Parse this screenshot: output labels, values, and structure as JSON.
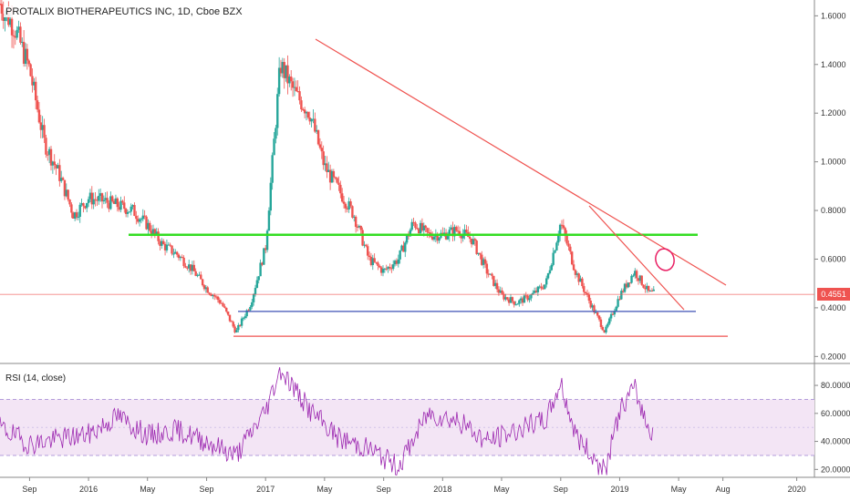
{
  "header": {
    "title": "PROTALIX BIOTHERAPEUTICS INC, 1D, Cboe BZX",
    "rsi_label": "RSI (14, close)"
  },
  "colors": {
    "up": "#26a69a",
    "down": "#ef5350",
    "trendline": "#ef5350",
    "resistance": "#33dd22",
    "support_blue": "#3f51b5",
    "support_red": "#ef5350",
    "rsi_line": "#9c27b0",
    "rsi_band": "#f3e5f5"
  },
  "chart_data": [
    {
      "type": "candlestick",
      "title": "PROTALIX BIOTHERAPEUTICS INC, 1D, Cboe BZX",
      "x_ticks": [
        "Sep",
        "2016",
        "May",
        "Sep",
        "2017",
        "May",
        "Sep",
        "2018",
        "May",
        "Sep",
        "2019",
        "May",
        "Aug",
        "2020"
      ],
      "y_ticks": [
        "1.6000",
        "1.4000",
        "1.2000",
        "1.0000",
        "0.8000",
        "0.6000",
        "0.4000",
        "0.2000"
      ],
      "ylim": [
        0.175,
        1.665
      ],
      "last_price": "0.4551",
      "series_close": [
        {
          "x": "2015-07",
          "y": 1.65
        },
        {
          "x": "2015-08",
          "y": 1.55
        },
        {
          "x": "2015-09",
          "y": 1.38
        },
        {
          "x": "2015-10",
          "y": 1.08
        },
        {
          "x": "2015-11",
          "y": 0.95
        },
        {
          "x": "2015-12",
          "y": 0.78
        },
        {
          "x": "2016-01",
          "y": 0.85
        },
        {
          "x": "2016-02",
          "y": 0.84
        },
        {
          "x": "2016-03",
          "y": 0.82
        },
        {
          "x": "2016-04",
          "y": 0.8
        },
        {
          "x": "2016-05",
          "y": 0.74
        },
        {
          "x": "2016-06",
          "y": 0.66
        },
        {
          "x": "2016-07",
          "y": 0.62
        },
        {
          "x": "2016-08",
          "y": 0.56
        },
        {
          "x": "2016-09",
          "y": 0.48
        },
        {
          "x": "2016-10",
          "y": 0.42
        },
        {
          "x": "2016-11",
          "y": 0.3
        },
        {
          "x": "2016-12",
          "y": 0.42
        },
        {
          "x": "2017-01",
          "y": 0.65
        },
        {
          "x": "2017-02",
          "y": 1.4
        },
        {
          "x": "2017-03",
          "y": 1.28
        },
        {
          "x": "2017-04",
          "y": 1.2
        },
        {
          "x": "2017-05",
          "y": 0.98
        },
        {
          "x": "2017-06",
          "y": 0.88
        },
        {
          "x": "2017-07",
          "y": 0.78
        },
        {
          "x": "2017-08",
          "y": 0.6
        },
        {
          "x": "2017-09",
          "y": 0.55
        },
        {
          "x": "2017-10",
          "y": 0.6
        },
        {
          "x": "2017-11",
          "y": 0.75
        },
        {
          "x": "2017-12",
          "y": 0.7
        },
        {
          "x": "2018-01",
          "y": 0.7
        },
        {
          "x": "2018-02",
          "y": 0.72
        },
        {
          "x": "2018-03",
          "y": 0.68
        },
        {
          "x": "2018-04",
          "y": 0.55
        },
        {
          "x": "2018-05",
          "y": 0.45
        },
        {
          "x": "2018-06",
          "y": 0.42
        },
        {
          "x": "2018-07",
          "y": 0.45
        },
        {
          "x": "2018-08",
          "y": 0.5
        },
        {
          "x": "2018-09",
          "y": 0.75
        },
        {
          "x": "2018-10",
          "y": 0.55
        },
        {
          "x": "2018-11",
          "y": 0.42
        },
        {
          "x": "2018-12",
          "y": 0.3
        },
        {
          "x": "2019-01",
          "y": 0.45
        },
        {
          "x": "2019-02",
          "y": 0.55
        },
        {
          "x": "2019-03",
          "y": 0.46
        }
      ],
      "horizontal_lines": [
        {
          "y": 0.7,
          "color": "#33dd22"
        },
        {
          "y": 0.385,
          "color": "#3f51b5"
        },
        {
          "y": 0.283,
          "color": "#ef5350"
        },
        {
          "y": 0.4551,
          "color": "#ef5350"
        }
      ]
    },
    {
      "type": "line",
      "title": "RSI (14, close)",
      "x_ticks": [
        "Sep",
        "2016",
        "May",
        "Sep",
        "2017",
        "May",
        "Sep",
        "2018",
        "May",
        "Sep",
        "2019",
        "May",
        "Aug",
        "2020"
      ],
      "y_ticks": [
        "80.0000",
        "60.0000",
        "40.0000",
        "20.0000"
      ],
      "ylim": [
        15,
        95
      ],
      "band": [
        30,
        70
      ],
      "series": [
        {
          "x": "2015-07",
          "y": 50
        },
        {
          "x": "2015-09",
          "y": 38
        },
        {
          "x": "2015-11",
          "y": 42
        },
        {
          "x": "2016-01",
          "y": 45
        },
        {
          "x": "2016-03",
          "y": 58
        },
        {
          "x": "2016-05",
          "y": 44
        },
        {
          "x": "2016-07",
          "y": 48
        },
        {
          "x": "2016-09",
          "y": 40
        },
        {
          "x": "2016-11",
          "y": 30
        },
        {
          "x": "2017-01",
          "y": 62
        },
        {
          "x": "2017-02",
          "y": 92
        },
        {
          "x": "2017-04",
          "y": 62
        },
        {
          "x": "2017-06",
          "y": 42
        },
        {
          "x": "2017-08",
          "y": 35
        },
        {
          "x": "2017-10",
          "y": 22
        },
        {
          "x": "2017-12",
          "y": 60
        },
        {
          "x": "2018-02",
          "y": 55
        },
        {
          "x": "2018-04",
          "y": 40
        },
        {
          "x": "2018-06",
          "y": 48
        },
        {
          "x": "2018-08",
          "y": 55
        },
        {
          "x": "2018-09",
          "y": 82
        },
        {
          "x": "2018-10",
          "y": 45
        },
        {
          "x": "2018-12",
          "y": 18
        },
        {
          "x": "2019-01",
          "y": 62
        },
        {
          "x": "2019-02",
          "y": 78
        },
        {
          "x": "2019-03",
          "y": 48
        }
      ]
    }
  ]
}
